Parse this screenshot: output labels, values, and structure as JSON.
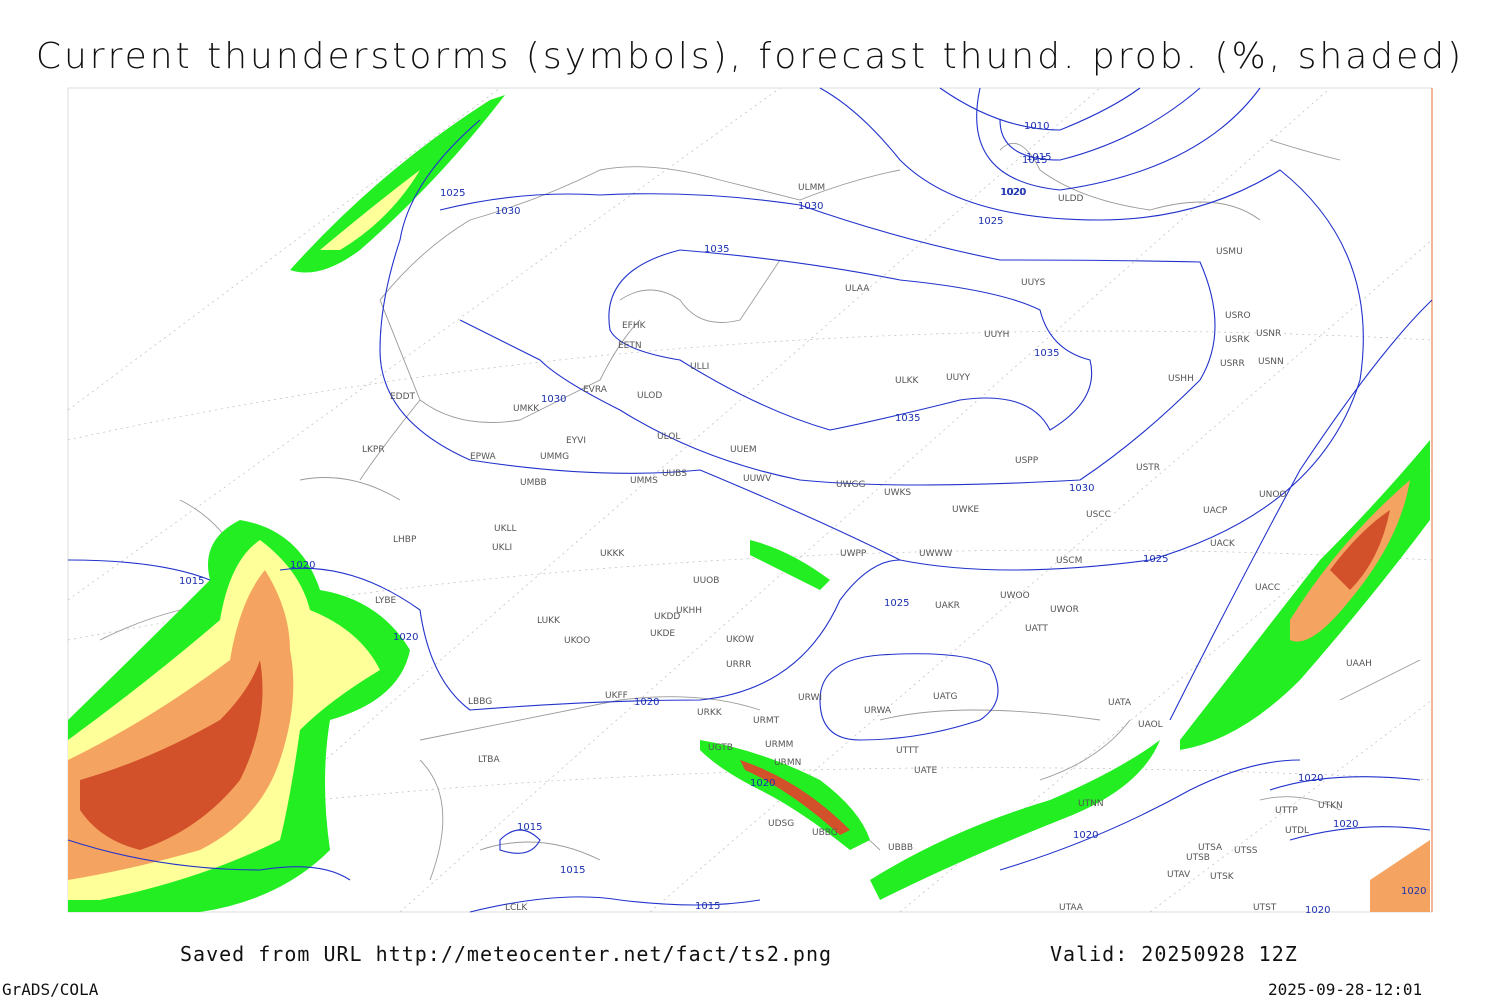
{
  "header": {
    "title": "Current thunderstorms (symbols), forecast thund. prob. (%, shaded)"
  },
  "footer": {
    "source": "Saved from URL http://meteocenter.net/fact/ts2.png",
    "valid": "Valid: 20250928 12Z",
    "software": "GrADS/COLA",
    "timestamp": "2025-09-28-12:01"
  },
  "isobar_labels": [
    "1010",
    "1015",
    "1020",
    "1025",
    "1030",
    "1030",
    "1035",
    "1035",
    "1035",
    "1030",
    "1030",
    "1020",
    "1025",
    "1015",
    "1020",
    "1020",
    "1025",
    "1025",
    "1020",
    "1020",
    "1015",
    "1015",
    "1015",
    "1015",
    "1020",
    "1020",
    "1020",
    "1020",
    "1020"
  ],
  "stations": [
    "ULMM",
    "ULDD",
    "ULAA",
    "UUYS",
    "USMU",
    "USRO",
    "USRK",
    "USNR",
    "USRR",
    "USNN",
    "EFHK",
    "EETN",
    "ULLI",
    "ULKK",
    "UUYY",
    "UUYH",
    "USHH",
    "EVRA",
    "ULOD",
    "EDDT",
    "UMKK",
    "ULOL",
    "UUEM",
    "EYVI",
    "EPWA",
    "UMMG",
    "UMBB",
    "UUWV",
    "UWGG",
    "UWKS",
    "USPP",
    "USTR",
    "UNOO",
    "UMMS",
    "UUBS",
    "UWKE",
    "USCC",
    "UACP",
    "UACK",
    "LKPR",
    "LHBP",
    "UKLL",
    "UKLI",
    "UKKK",
    "UUOB",
    "UWPP",
    "UWWW",
    "USCM",
    "UAKR",
    "UWOO",
    "UWOR",
    "UATT",
    "LYBE",
    "UKHH",
    "UKDD",
    "UKDE",
    "UKOW",
    "LUKK",
    "UKOO",
    "URRR",
    "UAAH",
    "LBBG",
    "UKFF",
    "URKK",
    "URMT",
    "URWI",
    "URWA",
    "UATG",
    "UATA",
    "UAOL",
    "UACC",
    "URMM",
    "URMN",
    "UATE",
    "UTTT",
    "UTNN",
    "UTSA",
    "UTSB",
    "UTSS",
    "UTAV",
    "UTSK",
    "UTDL",
    "UTKN",
    "UTTP",
    "LTBA",
    "UGTB",
    "UBBG",
    "UBBB",
    "UTAA",
    "UTST",
    "LCLK",
    "UDSG"
  ]
}
